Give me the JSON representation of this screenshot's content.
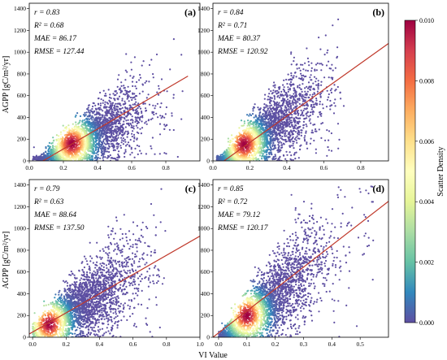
{
  "figure": {
    "ylabel": "AGPP [gC/m²/yr]",
    "xlabel": "VI Value",
    "colorbar": {
      "label": "Scatter Density",
      "ticks": [
        0.0,
        0.002,
        0.004,
        0.006,
        0.008,
        0.01
      ],
      "tick_labels": [
        "0.000",
        "0.002",
        "0.004",
        "0.006",
        "0.008",
        "0.010"
      ],
      "colormap": [
        "#5e4fa2",
        "#3288bd",
        "#66c2a5",
        "#abdda4",
        "#e6f598",
        "#ffffbf",
        "#fee08b",
        "#fdae61",
        "#f46d43",
        "#d53e4f",
        "#9e0142"
      ]
    },
    "colors": {
      "fit_line": "#c0392b",
      "one_to_one": "#000000",
      "sparse_point": "#5e4fa2"
    }
  },
  "chart_data": [
    {
      "type": "scatter",
      "panel_label": "(a)",
      "stats": [
        "r = 0.83",
        "R² = 0.68",
        "MAE = 86.17",
        "RMSE = 127.44"
      ],
      "xlim": [
        0.0,
        1.0
      ],
      "ylim": [
        0,
        1450
      ],
      "xticks": [
        0.0,
        0.2,
        0.4,
        0.6,
        0.8
      ],
      "xtick_labels": [
        "0.0",
        "0.2",
        "0.4",
        "0.6",
        "0.8"
      ],
      "yticks": [
        0,
        200,
        400,
        600,
        800,
        1000,
        1200,
        1400
      ],
      "ytick_labels": [
        "0",
        "200",
        "400",
        "600",
        "800",
        "1000",
        "1200",
        "1400"
      ],
      "fit_line": {
        "x": [
          0.08,
          0.93
        ],
        "y": [
          0,
          780
        ]
      },
      "point_cloud": {
        "x_center": 0.33,
        "x_spread": 0.17,
        "x_min": 0.02,
        "x_max": 0.9,
        "slope": 800,
        "intercept": -60,
        "max_y": 1390,
        "dense_x": 0.25,
        "dense_y": 160
      }
    },
    {
      "type": "scatter",
      "panel_label": "(b)",
      "stats": [
        "r = 0.84",
        "R² = 0.71",
        "MAE = 80.37",
        "RMSE = 120.92"
      ],
      "xlim": [
        0.0,
        0.95
      ],
      "ylim": [
        0,
        1450
      ],
      "xticks": [
        0.0,
        0.2,
        0.4,
        0.6,
        0.8
      ],
      "xtick_labels": [
        "0.0",
        "0.2",
        "0.4",
        "0.6",
        "0.8"
      ],
      "yticks": [
        0,
        200,
        400,
        600,
        800,
        1000,
        1200,
        1400
      ],
      "ytick_labels": [
        "0",
        "200",
        "400",
        "600",
        "800",
        "1000",
        "1200",
        "1400"
      ],
      "fit_line": {
        "x": [
          0.06,
          0.95
        ],
        "y": [
          0,
          1080
        ]
      },
      "point_cloud": {
        "x_center": 0.27,
        "x_spread": 0.15,
        "x_min": 0.02,
        "x_max": 0.72,
        "slope": 1150,
        "intercept": -55,
        "max_y": 1390,
        "dense_x": 0.17,
        "dense_y": 150
      }
    },
    {
      "type": "scatter",
      "panel_label": "(c)",
      "stats": [
        "r = 0.79",
        "R² = 0.63",
        "MAE = 88.64",
        "RMSE = 137.50"
      ],
      "xlim": [
        -0.02,
        1.0
      ],
      "ylim": [
        0,
        1450
      ],
      "xticks": [
        0.0,
        0.2,
        0.4,
        0.6,
        0.8,
        1.0
      ],
      "xtick_labels": [
        "0.0",
        "0.2",
        "0.4",
        "0.6",
        "0.8",
        "1.0"
      ],
      "yticks": [
        0,
        200,
        400,
        600,
        800,
        1000,
        1200,
        1400
      ],
      "ytick_labels": [
        "0",
        "200",
        "400",
        "600",
        "800",
        "1000",
        "1200",
        "1400"
      ],
      "fit_line": {
        "x": [
          -0.02,
          1.0
        ],
        "y": [
          30,
          930
        ]
      },
      "point_cloud": {
        "x_center": 0.28,
        "x_spread": 0.17,
        "x_min": 0.0,
        "x_max": 0.82,
        "slope": 900,
        "intercept": 40,
        "max_y": 1390,
        "dense_x": 0.1,
        "dense_y": 120
      }
    },
    {
      "type": "scatter",
      "panel_label": "(d)",
      "stats": [
        "r = 0.85",
        "R² = 0.72",
        "MAE = 79.12",
        "RMSE = 120.17"
      ],
      "xlim": [
        -0.02,
        0.6
      ],
      "ylim": [
        0,
        1450
      ],
      "xticks": [
        0.0,
        0.1,
        0.2,
        0.3,
        0.4,
        0.5
      ],
      "xtick_labels": [
        "0.0",
        "0.1",
        "0.2",
        "0.3",
        "0.4",
        "0.5"
      ],
      "yticks": [
        0,
        200,
        400,
        600,
        800,
        1000,
        1200,
        1400
      ],
      "ytick_labels": [
        "0",
        "200",
        "400",
        "600",
        "800",
        "1000",
        "1200",
        "1400"
      ],
      "fit_line": {
        "x": [
          -0.02,
          0.6
        ],
        "y": [
          0,
          1250
        ]
      },
      "point_cloud": {
        "x_center": 0.17,
        "x_spread": 0.1,
        "x_min": 0.0,
        "x_max": 0.58,
        "slope": 2000,
        "intercept": -20,
        "max_y": 1390,
        "dense_x": 0.1,
        "dense_y": 200
      }
    }
  ]
}
